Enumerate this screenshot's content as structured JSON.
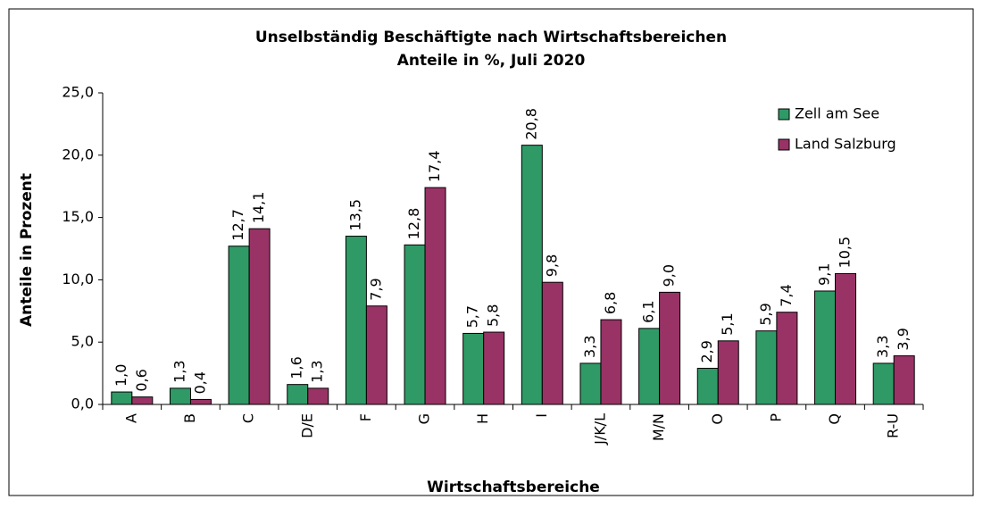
{
  "chart_data": {
    "type": "bar",
    "title": "Unselbständig Beschäftigte nach Wirtschaftsbereichen",
    "subtitle": "Anteile in %, Juli 2020",
    "x_label": "Wirtschaftsbereiche",
    "y_label": "Anteile in Prozent",
    "categories": [
      "A",
      "B",
      "C",
      "D/E",
      "F",
      "G",
      "H",
      "I",
      "J/K/L",
      "M/N",
      "O",
      "P",
      "Q",
      "R-U"
    ],
    "series": [
      {
        "name": "Zell am See",
        "color": "#2f9a66",
        "values": [
          1.0,
          1.3,
          12.7,
          1.6,
          13.5,
          12.8,
          5.7,
          20.8,
          3.3,
          6.1,
          2.9,
          5.9,
          9.1,
          3.3
        ],
        "value_labels": [
          "1,0",
          "1,3",
          "12,7",
          "1,6",
          "13,5",
          "12,8",
          "5,7",
          "20,8",
          "3,3",
          "6,1",
          "2,9",
          "5,9",
          "9,1",
          "3,3"
        ]
      },
      {
        "name": "Land Salzburg",
        "color": "#993366",
        "values": [
          0.6,
          0.4,
          14.1,
          1.3,
          7.9,
          17.4,
          5.8,
          9.8,
          6.8,
          9.0,
          5.1,
          7.4,
          10.5,
          3.9
        ],
        "value_labels": [
          "0,6",
          "0,4",
          "14,1",
          "1,3",
          "7,9",
          "17,4",
          "5,8",
          "9,8",
          "6,8",
          "9,0",
          "5,1",
          "7,4",
          "10,5",
          "3,9"
        ]
      }
    ],
    "ylim": [
      0,
      25
    ],
    "yticks": [
      {
        "value": 0,
        "label": "0,0"
      },
      {
        "value": 5,
        "label": "5,0"
      },
      {
        "value": 10,
        "label": "10,0"
      },
      {
        "value": 15,
        "label": "15,0"
      },
      {
        "value": 20,
        "label": "20,0"
      },
      {
        "value": 25,
        "label": "25,0"
      }
    ],
    "legend": "top-right"
  }
}
